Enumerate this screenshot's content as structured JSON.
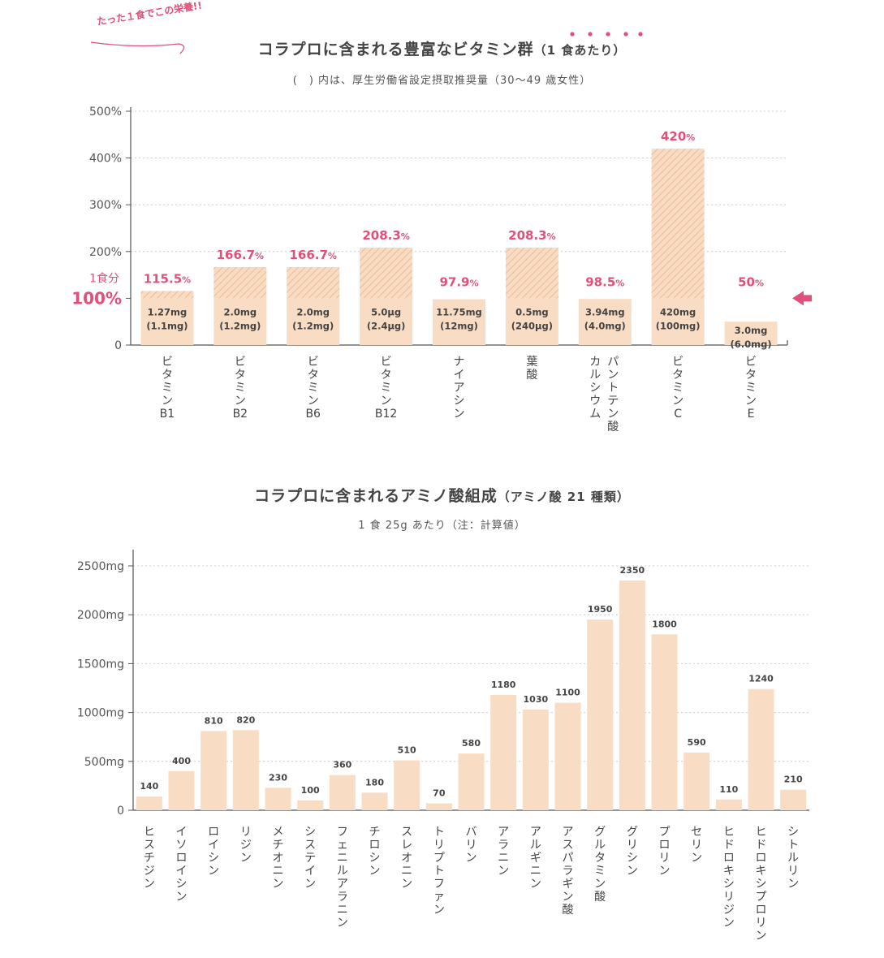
{
  "badge": "たった１食でこの栄養!!",
  "chart1": {
    "title_main": "コラプロに含まれる豊富なビタミン群",
    "title_suffix": "（1 食あたり）",
    "subtitle": "(　) 内は、厚生労働省設定摂取推奨量（30～49 歳女性）",
    "ref_label_small": "1食分",
    "ref_label_big": "100%"
  },
  "chart2": {
    "title_main": "コラプロに含まれるアミノ酸組成",
    "title_suffix": "（アミノ酸 21 種類）",
    "subtitle": "1 食 25g あたり（注：計算値）"
  },
  "colors": {
    "bar": "#f9dcc4",
    "hatch": "#f0bd97",
    "accent": "#e05079",
    "axis": "#555555",
    "grid": "#cccccc"
  },
  "chart_data": [
    {
      "type": "bar",
      "title": "コラプロに含まれる豊富なビタミン群（1 食あたり）",
      "ylim": [
        0,
        500
      ],
      "yticks": [
        "0",
        "100%",
        "200%",
        "300%",
        "400%",
        "500%"
      ],
      "grid": true,
      "categories": [
        "ビタミンB1",
        "ビタミンB2",
        "ビタミンB6",
        "ビタミンB12",
        "ナイアシン",
        "葉酸",
        "パントテン酸カルシウム",
        "ビタミンC",
        "ビタミンE"
      ],
      "category_lines": [
        [
          "ビ",
          "タ",
          "ミ",
          "ン",
          "B1"
        ],
        [
          "ビ",
          "タ",
          "ミ",
          "ン",
          "B2"
        ],
        [
          "ビ",
          "タ",
          "ミ",
          "ン",
          "B6"
        ],
        [
          "ビ",
          "タ",
          "ミ",
          "ン",
          "B12"
        ],
        [
          "ナ",
          "イ",
          "ア",
          "シ",
          "ン"
        ],
        [
          "葉",
          "酸"
        ],
        [
          "パ",
          "ン",
          "ト",
          "テ",
          "ン",
          "酸"
        ],
        [
          "ビ",
          "タ",
          "ミ",
          "ン",
          "C"
        ],
        [
          "ビ",
          "タ",
          "ミ",
          "ン",
          "E"
        ]
      ],
      "values": [
        115.5,
        166.7,
        166.7,
        208.3,
        97.9,
        208.3,
        98.5,
        420,
        50
      ],
      "value_labels": [
        "115.5",
        "166.7",
        "166.7",
        "208.3",
        "97.9",
        "208.3",
        "98.5",
        "420",
        "50"
      ],
      "amounts": [
        "1.27mg",
        "2.0mg",
        "2.0mg",
        "5.0μg",
        "11.75mg",
        "0.5mg",
        "3.94mg",
        "420mg",
        "3.0mg"
      ],
      "recommended": [
        "(1.1mg)",
        "(1.2mg)",
        "(1.2mg)",
        "(2.4μg)",
        "(12mg)",
        "(240μg)",
        "(4.0mg)",
        "(100mg)",
        "(6.0mg)"
      ],
      "extra_column_lines": [
        [],
        [],
        [],
        [],
        [],
        [],
        [
          "カ",
          "ル",
          "シ",
          "ウ",
          "ム"
        ],
        [],
        []
      ],
      "percent_sign": "%",
      "reference_line": 100
    },
    {
      "type": "bar",
      "title": "コラプロに含まれるアミノ酸組成（アミノ酸 21 種類）",
      "ylim": [
        0,
        2500
      ],
      "yticks": [
        "0",
        "500mg",
        "1000mg",
        "1500mg",
        "2000mg",
        "2500mg"
      ],
      "grid": true,
      "categories": [
        "ヒスチジン",
        "イソロイシン",
        "ロイシン",
        "リジン",
        "メチオニン",
        "システイン",
        "フェニルアラニン",
        "チロシン",
        "スレオニン",
        "トリプトファン",
        "バリン",
        "アラニン",
        "アルギニン",
        "アスパラギン酸",
        "グルタミン酸",
        "グリシン",
        "プロリン",
        "セリン",
        "ヒドロキシリジン",
        "ヒドロキシプロリン",
        "シトルリン"
      ],
      "values": [
        140,
        400,
        810,
        820,
        230,
        100,
        360,
        180,
        510,
        70,
        580,
        1180,
        1030,
        1100,
        1950,
        2350,
        1800,
        590,
        110,
        1240,
        210
      ]
    }
  ]
}
